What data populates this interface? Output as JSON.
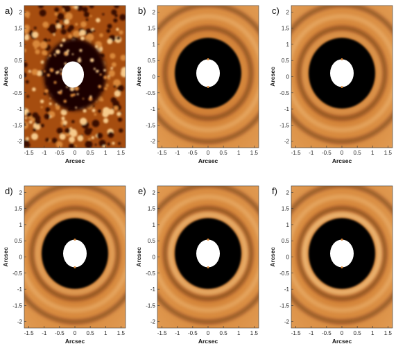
{
  "figure": {
    "x_ticks": [
      "-1.5",
      "-1",
      "-0.5",
      "0",
      "0.5",
      "1",
      "1.5"
    ],
    "y_ticks": [
      "2",
      "1.5",
      "1",
      "0.5",
      "0",
      "-0.5",
      "-1",
      "-1.5",
      "-2"
    ],
    "xlabel": "Arcsec",
    "ylabel": "Arcsec",
    "colormap": [
      "#000000",
      "#3a0f00",
      "#a64d0f",
      "#d9883a",
      "#f6c98a",
      "#ffffff"
    ],
    "panels": [
      {
        "label": "a)",
        "style": "noisy"
      },
      {
        "label": "b)",
        "style": "ring"
      },
      {
        "label": "c)",
        "style": "ring"
      },
      {
        "label": "d)",
        "style": "ring"
      },
      {
        "label": "e)",
        "style": "ring"
      },
      {
        "label": "f)",
        "style": "ring"
      }
    ]
  }
}
